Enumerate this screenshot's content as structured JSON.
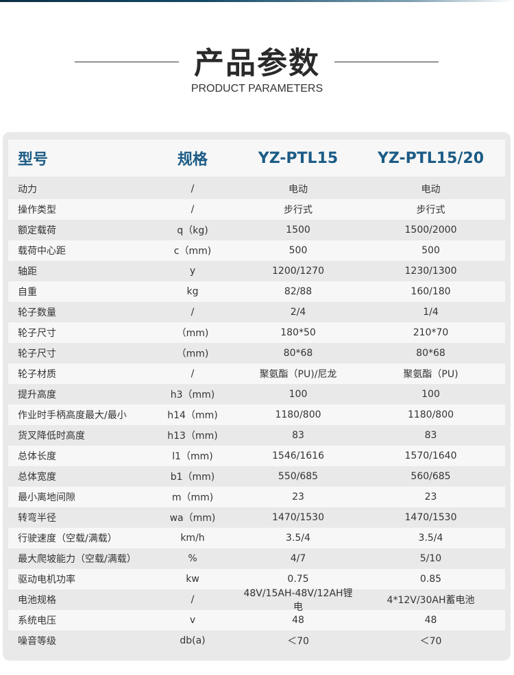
{
  "title": "产品参数",
  "subtitle": "PRODUCT PARAMETERS",
  "header": [
    "型号",
    "规格",
    "YZ-PTL15",
    "YZ-PTL15/20"
  ],
  "rows": [
    [
      "动力",
      "/",
      "电动",
      "电动"
    ],
    [
      "操作类型",
      "/",
      "步行式",
      "步行式"
    ],
    [
      "额定载荷",
      "q（kg)",
      "1500",
      "1500/2000"
    ],
    [
      "载荷中心距",
      "c（mm)",
      "500",
      "500"
    ],
    [
      "轴距",
      "y",
      "1200/1270",
      "1230/1300"
    ],
    [
      "自重",
      "kg",
      "82/88",
      "160/180"
    ],
    [
      "轮子数量",
      "/",
      "2/4",
      "1/4"
    ],
    [
      "轮子尺寸",
      "（mm)",
      "180*50",
      "210*70"
    ],
    [
      "轮子尺寸",
      "（mm)",
      "80*68",
      "80*68"
    ],
    [
      "轮子材质",
      "/",
      "聚氨酯（PU)/尼龙",
      "聚氨酯（PU)"
    ],
    [
      "提升高度",
      "h3（mm)",
      "100",
      "100"
    ],
    [
      "作业时手柄高度最大/最小",
      "h14（mm)",
      "1180/800",
      "1180/800"
    ],
    [
      "货叉降低时高度",
      "h13（mm)",
      "83",
      "83"
    ],
    [
      "总体长度",
      "l1（mm)",
      "1546/1616",
      "1570/1640"
    ],
    [
      "总体宽度",
      "b1（mm)",
      "550/685",
      "560/685"
    ],
    [
      "最小离地间隙",
      "m（mm)",
      "23",
      "23"
    ],
    [
      "转弯半径",
      "wa（mm)",
      "1470/1530",
      "1470/1530"
    ],
    [
      "行驶速度（空载/满载）",
      "km/h",
      "3.5/4",
      "3.5/4"
    ],
    [
      "最大爬坡能力（空载/满载）",
      "%",
      "4/7",
      "5/10"
    ],
    [
      "驱动电机功率",
      "kw",
      "0.75",
      "0.85"
    ],
    [
      "电池规格",
      "/",
      "48V/15AH-48V/12AH锂电",
      "4*12V/30AH蓄电池"
    ],
    [
      "系统电压",
      "v",
      "48",
      "48"
    ],
    [
      "噪音等级",
      "db(a)",
      "＜70",
      "＜70"
    ]
  ],
  "colors": {
    "accent": "#1b5b85",
    "card": "#e9e9e9",
    "row_alt": "#f7f7f7"
  }
}
